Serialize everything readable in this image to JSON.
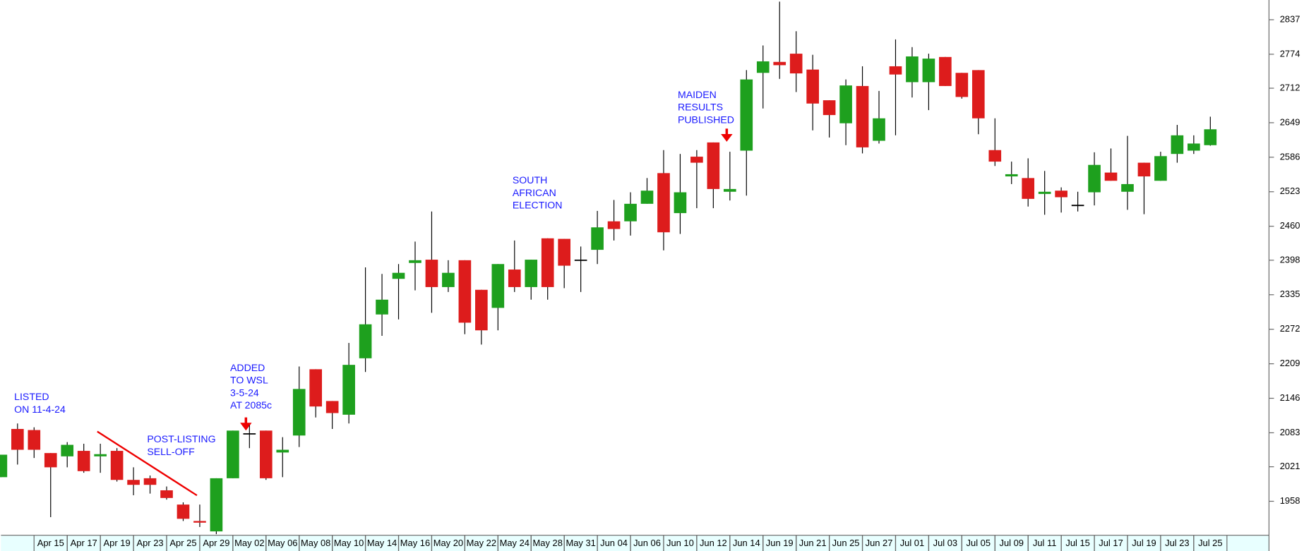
{
  "chart_data": {
    "type": "candlestick",
    "categories": [
      null,
      null,
      null,
      "Apr 15",
      null,
      "Apr 17",
      null,
      "Apr 19",
      null,
      "Apr 23",
      null,
      "Apr 25",
      null,
      "Apr 29",
      null,
      "May 02",
      null,
      "May 06",
      null,
      "May 08",
      null,
      "May 10",
      null,
      "May 14",
      null,
      "May 16",
      null,
      "May 20",
      null,
      "May 22",
      null,
      "May 24",
      null,
      "May 28",
      null,
      "May 31",
      null,
      "Jun 04",
      null,
      "Jun 06",
      null,
      "Jun 10",
      null,
      "Jun 12",
      null,
      "Jun 14",
      null,
      "Jun 19",
      null,
      "Jun 21",
      null,
      "Jun 25",
      null,
      "Jun 27",
      null,
      "Jul 01",
      null,
      "Jul 03",
      null,
      "Jul 05",
      null,
      "Jul 09",
      null,
      "Jul 11",
      null,
      "Jul 15",
      null,
      "Jul 17",
      null,
      "Jul 19",
      null,
      "Jul 23",
      null,
      "Jul 25"
    ],
    "open": [
      2002,
      2090,
      2088,
      2046,
      2040,
      2050,
      2040,
      2050,
      1997,
      2000,
      1978,
      1952,
      1922,
      1903,
      2000,
      2081,
      2087,
      2047,
      2078,
      2199,
      2141,
      2116,
      2219,
      2299,
      2364,
      2393,
      2399,
      2349,
      2398,
      2344,
      2311,
      2381,
      2349,
      2438,
      2437,
      2398,
      2417,
      2469,
      2469,
      2501,
      2557,
      2484,
      2587,
      2613,
      2523,
      2598,
      2740,
      2760,
      2775,
      2746,
      2690,
      2648,
      2716,
      2616,
      2752,
      2723,
      2723,
      2769,
      2740,
      2745,
      2599,
      2551,
      2548,
      2519,
      2525,
      2498,
      2522,
      2558,
      2523,
      2576,
      2543,
      2592,
      2598,
      2608
    ],
    "high": [
      2043,
      2100,
      2093,
      2046,
      2066,
      2063,
      2063,
      2055,
      2020,
      2005,
      1985,
      1956,
      1952,
      2000,
      2087,
      2097,
      2087,
      2075,
      2204,
      2199,
      2141,
      2247,
      2385,
      2373,
      2391,
      2432,
      2487,
      2398,
      2398,
      2344,
      2391,
      2434,
      2399,
      2438,
      2437,
      2423,
      2488,
      2508,
      2522,
      2548,
      2599,
      2592,
      2599,
      2613,
      2596,
      2745,
      2790,
      2870,
      2816,
      2773,
      2690,
      2728,
      2752,
      2707,
      2801,
      2787,
      2775,
      2769,
      2740,
      2745,
      2657,
      2578,
      2584,
      2561,
      2531,
      2523,
      2595,
      2602,
      2625,
      2576,
      2596,
      2645,
      2626,
      2660
    ],
    "low": [
      2002,
      2025,
      2037,
      1929,
      2020,
      2010,
      2010,
      1994,
      1969,
      1972,
      1961,
      1922,
      1911,
      1898,
      2000,
      2055,
      1997,
      2002,
      2057,
      2111,
      2090,
      2100,
      2194,
      2260,
      2290,
      2343,
      2302,
      2340,
      2263,
      2244,
      2270,
      2340,
      2326,
      2326,
      2347,
      2340,
      2391,
      2434,
      2443,
      2501,
      2416,
      2446,
      2493,
      2493,
      2507,
      2516,
      2675,
      2729,
      2705,
      2635,
      2622,
      2608,
      2593,
      2611,
      2626,
      2695,
      2672,
      2716,
      2693,
      2628,
      2570,
      2537,
      2496,
      2481,
      2485,
      2487,
      2498,
      2543,
      2490,
      2482,
      2543,
      2576,
      2592,
      2607
    ],
    "close": [
      2043,
      2052,
      2052,
      2020,
      2061,
      2013,
      2044,
      1997,
      1988,
      1988,
      1964,
      1926,
      1919,
      2000,
      2087,
      2081,
      2000,
      2052,
      2163,
      2131,
      2119,
      2207,
      2281,
      2326,
      2375,
      2398,
      2349,
      2375,
      2284,
      2270,
      2391,
      2349,
      2399,
      2349,
      2388,
      2398,
      2458,
      2455,
      2501,
      2525,
      2449,
      2522,
      2576,
      2528,
      2528,
      2728,
      2761,
      2754,
      2739,
      2684,
      2663,
      2717,
      2604,
      2657,
      2737,
      2770,
      2766,
      2716,
      2696,
      2657,
      2578,
      2555,
      2510,
      2523,
      2513,
      2498,
      2572,
      2543,
      2537,
      2551,
      2588,
      2626,
      2611,
      2637
    ],
    "up_color": "#1ea01e",
    "down_color": "#dd1c1c",
    "doji_color": "#000000",
    "ylim": [
      1896,
      2873
    ],
    "yticks": [
      1958,
      2021,
      2083,
      2146,
      2209,
      2272,
      2335,
      2398,
      2460,
      2523,
      2586,
      2649,
      2712,
      2774,
      2837
    ],
    "annotations": [
      {
        "text": [
          "LISTED",
          "ON 11-4-24"
        ]
      },
      {
        "text": [
          "POST-LISTING",
          "SELL-OFF"
        ]
      },
      {
        "text": [
          "ADDED",
          "TO WSL",
          "3-5-24",
          "AT 2085c"
        ]
      },
      {
        "text": [
          "SOUTH",
          "AFRICAN",
          "ELECTION"
        ]
      },
      {
        "text": [
          "MAIDEN",
          "RESULTS",
          "PUBLISHED"
        ]
      }
    ]
  }
}
